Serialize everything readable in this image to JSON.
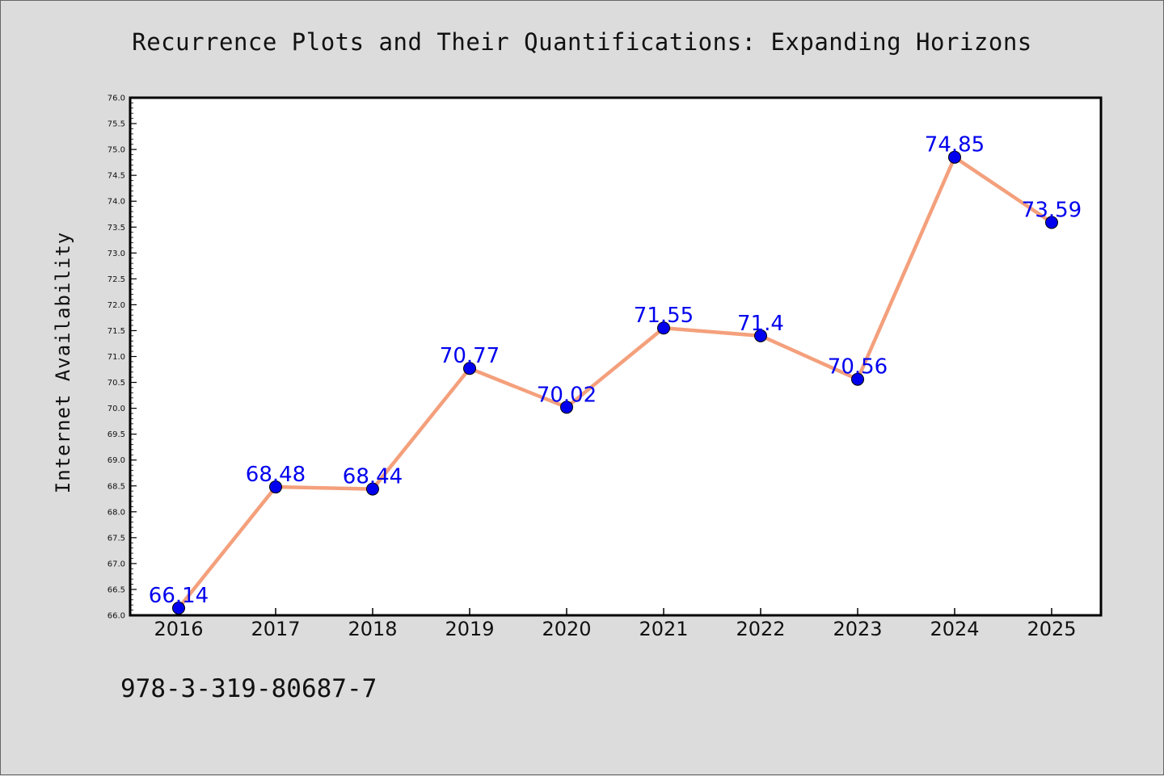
{
  "chart_data": {
    "type": "line",
    "title": "Recurrence Plots and Their Quantifications: Expanding Horizons",
    "xlabel": "",
    "ylabel": "Internet Availability",
    "categories": [
      "2016",
      "2017",
      "2018",
      "2019",
      "2020",
      "2021",
      "2022",
      "2023",
      "2024",
      "2025"
    ],
    "series": [
      {
        "values": [
          66.14,
          68.48,
          68.44,
          70.77,
          70.02,
          71.55,
          71.4,
          70.56,
          74.85,
          73.59
        ],
        "data_labels": [
          "66.14",
          "68.48",
          "68.44",
          "70.77",
          "70.02",
          "71.55",
          "71.4",
          "70.56",
          "74.85",
          "73.59"
        ]
      }
    ],
    "ylim": [
      66.0,
      76.0
    ],
    "yticks": [
      "66.0",
      "66.5",
      "67.0",
      "67.5",
      "68.0",
      "68.5",
      "69.0",
      "69.5",
      "70.0",
      "70.5",
      "71.0",
      "71.5",
      "72.0",
      "72.5",
      "73.0",
      "73.5",
      "74.0",
      "74.5",
      "75.0",
      "75.5",
      "76.0"
    ],
    "grid": false,
    "legend": "none",
    "colors": {
      "line": "#f4a07c",
      "marker": "#0000ee",
      "data_label": "#0000ee",
      "plot_background": "#ffffff",
      "page_background": "#dcdcdc"
    }
  },
  "annotation": "978-3-319-80687-7"
}
